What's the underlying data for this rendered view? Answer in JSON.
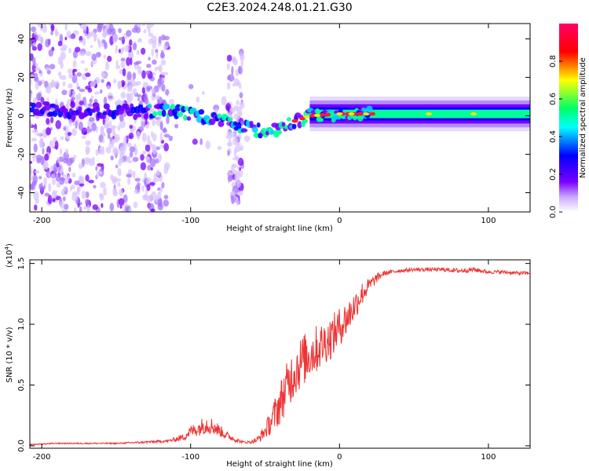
{
  "title": "C2E3.2024.248.01.21.G30",
  "chart_data": [
    {
      "type": "heatmap",
      "xlabel": "Height of straight line (km)",
      "ylabel": "Frequency (Hz)",
      "xlim": [
        -208,
        128
      ],
      "ylim": [
        -50,
        48
      ],
      "xticks": [
        -200,
        -100,
        0,
        100
      ],
      "yticks": [
        -40,
        -20,
        0,
        20,
        40
      ],
      "xtick_labels": [
        "-200",
        "-100",
        "0",
        "100"
      ],
      "ytick_labels": [
        "-40",
        "-20",
        "0",
        "20",
        "40"
      ],
      "colorbar": {
        "label": "Normalized spectral amplitude",
        "range": [
          0,
          1
        ],
        "ticks": [
          0,
          0.2,
          0.4,
          0.6,
          0.8
        ],
        "tick_labels": [
          "0.0",
          "0.2",
          "0.4",
          "0.6",
          "0.8"
        ],
        "colors": [
          "#ffffff",
          "#7a00ff",
          "#0000ff",
          "#00ffff",
          "#00ff66",
          "#ffff00",
          "#ff0000",
          "#ff0066"
        ]
      },
      "center_line": {
        "x": [
          -208,
          -180,
          -150,
          -120,
          -100,
          -80,
          -60,
          -45,
          -35,
          -20,
          0,
          20,
          60,
          128
        ],
        "y": [
          4,
          3,
          2,
          3,
          1,
          -3,
          -7,
          -8,
          -4,
          0,
          1,
          1,
          1,
          1
        ]
      },
      "scatter_extent": {
        "noisy_until_x": -115,
        "noise_band_x": [
          -75,
          -65
        ]
      }
    },
    {
      "type": "line",
      "xlabel": "Height of straight line (km)",
      "ylabel": "SNR (10 * v/v)",
      "scale_label": "(x10",
      "scale_exp": "4",
      "xlim": [
        -208,
        128
      ],
      "ylim": [
        -0.02,
        1.53
      ],
      "xticks": [
        -200,
        -100,
        0,
        100
      ],
      "yticks": [
        0,
        0.5,
        1.0,
        1.5
      ],
      "xtick_labels": [
        "-200",
        "-100",
        "0",
        "100"
      ],
      "ytick_labels": [
        "0.0",
        "0.5",
        "1.0",
        "1.5"
      ],
      "color": "#ee3333",
      "series": [
        {
          "x": [
            -208,
            -190,
            -170,
            -150,
            -130,
            -115,
            -105,
            -100,
            -95,
            -90,
            -85,
            -80,
            -75,
            -70,
            -65,
            -60,
            -55,
            -50,
            -45,
            -40,
            -35,
            -30,
            -25,
            -20,
            -15,
            -10,
            -5,
            0,
            5,
            10,
            15,
            20,
            25,
            30,
            40,
            50,
            60,
            70,
            80,
            90,
            100,
            110,
            120,
            128
          ],
          "y": [
            0.01,
            0.02,
            0.02,
            0.02,
            0.03,
            0.04,
            0.07,
            0.12,
            0.14,
            0.18,
            0.16,
            0.12,
            0.08,
            0.05,
            0.03,
            0.03,
            0.05,
            0.12,
            0.22,
            0.35,
            0.5,
            0.62,
            0.7,
            0.75,
            0.8,
            0.85,
            0.9,
            0.98,
            1.05,
            1.15,
            1.25,
            1.32,
            1.38,
            1.42,
            1.44,
            1.45,
            1.45,
            1.45,
            1.44,
            1.45,
            1.43,
            1.43,
            1.42,
            1.42
          ],
          "noise": [
            0.005,
            0.005,
            0.005,
            0.005,
            0.01,
            0.01,
            0.03,
            0.05,
            0.06,
            0.08,
            0.07,
            0.05,
            0.03,
            0.02,
            0.01,
            0.01,
            0.03,
            0.06,
            0.12,
            0.18,
            0.2,
            0.22,
            0.22,
            0.2,
            0.2,
            0.18,
            0.18,
            0.16,
            0.15,
            0.12,
            0.1,
            0.06,
            0.04,
            0.02,
            0.015,
            0.015,
            0.015,
            0.015,
            0.02,
            0.02,
            0.015,
            0.015,
            0.015,
            0.015
          ]
        }
      ]
    }
  ]
}
